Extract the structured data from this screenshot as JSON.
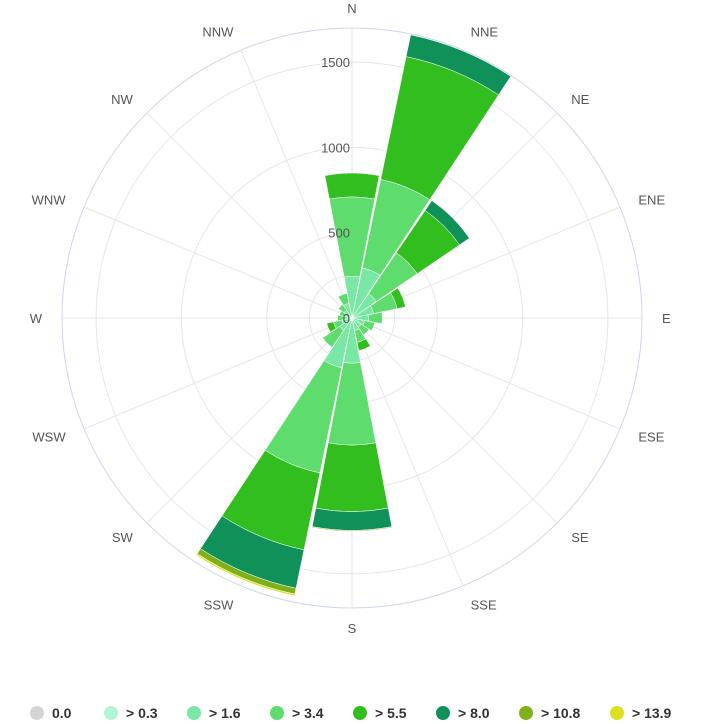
{
  "chart_data": {
    "type": "polar-stacked-bar",
    "title": "",
    "directions": [
      "N",
      "NNE",
      "NE",
      "ENE",
      "E",
      "ESE",
      "SE",
      "SSE",
      "S",
      "SSW",
      "SW",
      "WSW",
      "W",
      "WNW",
      "NW",
      "NNW"
    ],
    "radial_ticks": [
      "0",
      "500",
      "1000",
      "1500"
    ],
    "radial_max": 1700,
    "grid": true,
    "legend_position": "bottom",
    "series": [
      {
        "name": "0.0",
        "color": "#d6d3d6",
        "values": [
          0,
          0,
          0,
          0,
          0,
          0,
          0,
          0,
          0,
          0,
          0,
          0,
          0,
          0,
          0,
          0
        ]
      },
      {
        "name": "> 0.3",
        "color": "#b0f5d8",
        "values": [
          15,
          20,
          12,
          10,
          8,
          6,
          5,
          6,
          15,
          18,
          8,
          6,
          5,
          5,
          6,
          8
        ]
      },
      {
        "name": "> 1.6",
        "color": "#79e8a4",
        "values": [
          230,
          280,
          160,
          120,
          90,
          70,
          60,
          70,
          250,
          280,
          80,
          55,
          45,
          40,
          50,
          80
        ]
      },
      {
        "name": "> 3.4",
        "color": "#5fdc6e",
        "values": [
          465,
          530,
          290,
          140,
          80,
          60,
          55,
          70,
          480,
          630,
          120,
          50,
          35,
          30,
          40,
          60
        ]
      },
      {
        "name": "> 5.5",
        "color": "#33be1f",
        "values": [
          140,
          735,
          300,
          50,
          0,
          0,
          0,
          50,
          390,
          460,
          0,
          40,
          0,
          0,
          0,
          0
        ]
      },
      {
        "name": "> 8.0",
        "color": "#11915a",
        "values": [
          0,
          130,
          70,
          0,
          0,
          0,
          0,
          0,
          110,
          230,
          0,
          0,
          0,
          0,
          0,
          0
        ]
      },
      {
        "name": "> 10.8",
        "color": "#7fb01a",
        "values": [
          0,
          0,
          0,
          0,
          0,
          0,
          0,
          0,
          5,
          35,
          0,
          0,
          0,
          0,
          0,
          0
        ]
      },
      {
        "name": "> 13.9",
        "color": "#dde022",
        "values": [
          0,
          0,
          0,
          0,
          0,
          0,
          0,
          0,
          0,
          10,
          0,
          0,
          0,
          0,
          0,
          0
        ]
      }
    ]
  }
}
